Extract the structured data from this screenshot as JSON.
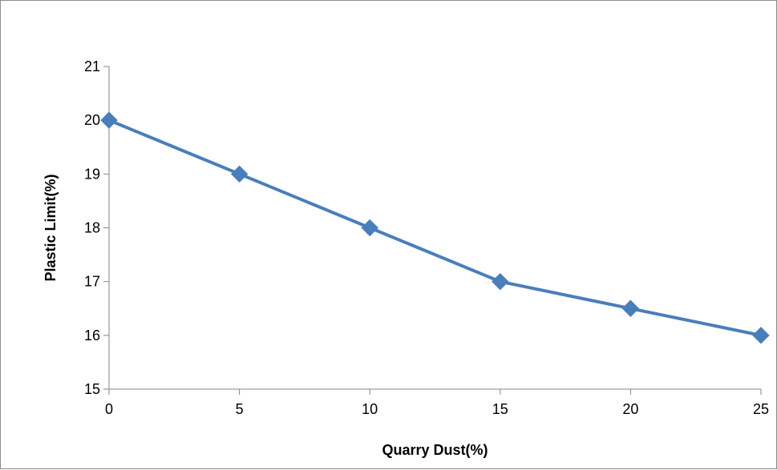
{
  "chart_data": {
    "type": "line",
    "xlabel": "Quarry Dust(%)",
    "ylabel": "Plastic Limit(%)",
    "x": [
      0,
      5,
      10,
      15,
      20,
      25
    ],
    "series": [
      {
        "values": [
          20,
          19,
          18,
          17,
          16.5,
          16
        ],
        "color": "#4a7ebb",
        "marker": "diamond"
      }
    ],
    "xlim": [
      0,
      25
    ],
    "ylim": [
      15,
      21
    ],
    "x_ticks": [
      "0",
      "5",
      "10",
      "15",
      "20",
      "25"
    ],
    "y_ticks": [
      "15",
      "16",
      "17",
      "18",
      "19",
      "20",
      "21"
    ],
    "grid": false,
    "legend": "none"
  }
}
